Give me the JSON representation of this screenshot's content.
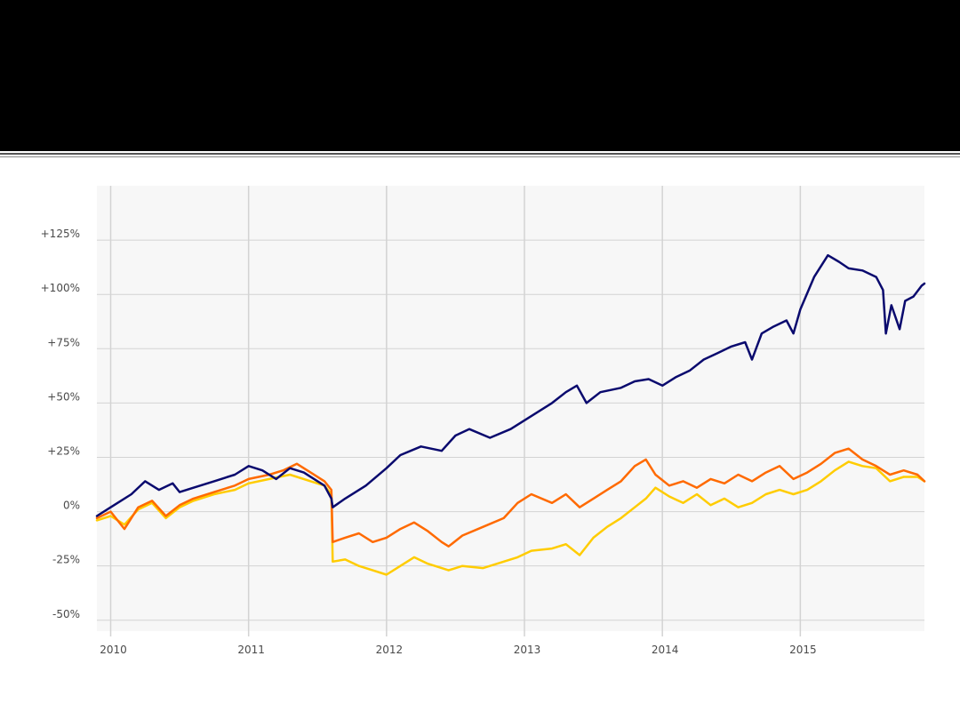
{
  "chart_data": {
    "type": "line",
    "title": "",
    "xlabel": "",
    "ylabel": "",
    "xlim": [
      2009.9,
      2015.9
    ],
    "ylim": [
      -55,
      150
    ],
    "grid": true,
    "legend": "none",
    "x_ticks": [
      {
        "value": 2010,
        "label": "2010"
      },
      {
        "value": 2011,
        "label": "2011"
      },
      {
        "value": 2012,
        "label": "2012"
      },
      {
        "value": 2013,
        "label": "2013"
      },
      {
        "value": 2014,
        "label": "2014"
      },
      {
        "value": 2015,
        "label": "2015"
      }
    ],
    "y_ticks": [
      {
        "value": 125,
        "label": "+125%"
      },
      {
        "value": 100,
        "label": "+100%"
      },
      {
        "value": 75,
        "label": "+75%"
      },
      {
        "value": 50,
        "label": "+50%"
      },
      {
        "value": 25,
        "label": "+25%"
      },
      {
        "value": 0,
        "label": "0%"
      },
      {
        "value": -25,
        "label": "-25%"
      },
      {
        "value": -50,
        "label": "-50%"
      }
    ],
    "colors": {
      "plot_background": "#f7f7f7",
      "grid": "#d3d3d3"
    },
    "series": [
      {
        "color": "#0a0a6e",
        "x": [
          2009.9,
          2010.0,
          2010.15,
          2010.25,
          2010.35,
          2010.45,
          2010.5,
          2010.6,
          2010.75,
          2010.9,
          2011.0,
          2011.1,
          2011.2,
          2011.3,
          2011.4,
          2011.5,
          2011.55,
          2011.6,
          2011.61,
          2011.7,
          2011.85,
          2012.0,
          2012.1,
          2012.25,
          2012.4,
          2012.5,
          2012.6,
          2012.75,
          2012.9,
          2013.0,
          2013.1,
          2013.2,
          2013.3,
          2013.38,
          2013.45,
          2013.55,
          2013.7,
          2013.8,
          2013.9,
          2014.0,
          2014.1,
          2014.2,
          2014.3,
          2014.4,
          2014.5,
          2014.6,
          2014.65,
          2014.72,
          2014.8,
          2014.9,
          2014.95,
          2015.0,
          2015.1,
          2015.2,
          2015.28,
          2015.35,
          2015.45,
          2015.55,
          2015.6,
          2015.62,
          2015.66,
          2015.72,
          2015.76,
          2015.82,
          2015.88,
          2015.9
        ],
        "values": [
          -2,
          2,
          8,
          14,
          10,
          13,
          9,
          11,
          14,
          17,
          21,
          19,
          15,
          20,
          18,
          14,
          12,
          6,
          2,
          6,
          12,
          20,
          26,
          30,
          28,
          35,
          38,
          34,
          38,
          42,
          46,
          50,
          55,
          58,
          50,
          55,
          57,
          60,
          61,
          58,
          62,
          65,
          70,
          73,
          76,
          78,
          70,
          82,
          85,
          88,
          82,
          93,
          108,
          118,
          115,
          112,
          111,
          108,
          102,
          82,
          95,
          84,
          97,
          99,
          104,
          105
        ]
      },
      {
        "color": "#ff6a00",
        "x": [
          2009.9,
          2010.0,
          2010.1,
          2010.2,
          2010.3,
          2010.4,
          2010.5,
          2010.6,
          2010.75,
          2010.9,
          2011.0,
          2011.15,
          2011.25,
          2011.35,
          2011.45,
          2011.55,
          2011.6,
          2011.61,
          2011.7,
          2011.8,
          2011.9,
          2012.0,
          2012.1,
          2012.2,
          2012.3,
          2012.4,
          2012.45,
          2012.55,
          2012.7,
          2012.85,
          2012.95,
          2013.05,
          2013.2,
          2013.3,
          2013.4,
          2013.5,
          2013.6,
          2013.7,
          2013.8,
          2013.88,
          2013.95,
          2014.05,
          2014.15,
          2014.25,
          2014.35,
          2014.45,
          2014.55,
          2014.65,
          2014.75,
          2014.85,
          2014.95,
          2015.05,
          2015.15,
          2015.25,
          2015.35,
          2015.45,
          2015.55,
          2015.6,
          2015.65,
          2015.75,
          2015.85,
          2015.9
        ],
        "values": [
          -3,
          0,
          -8,
          2,
          5,
          -2,
          3,
          6,
          9,
          12,
          15,
          17,
          19,
          22,
          18,
          14,
          10,
          -14,
          -12,
          -10,
          -14,
          -12,
          -8,
          -5,
          -9,
          -14,
          -16,
          -11,
          -7,
          -3,
          4,
          8,
          4,
          8,
          2,
          6,
          10,
          14,
          21,
          24,
          17,
          12,
          14,
          11,
          15,
          13,
          17,
          14,
          18,
          21,
          15,
          18,
          22,
          27,
          29,
          24,
          21,
          19,
          17,
          19,
          17,
          14
        ]
      },
      {
        "color": "#ffcc00",
        "x": [
          2009.9,
          2010.0,
          2010.1,
          2010.2,
          2010.3,
          2010.4,
          2010.5,
          2010.6,
          2010.75,
          2010.9,
          2011.0,
          2011.15,
          2011.3,
          2011.45,
          2011.55,
          2011.6,
          2011.61,
          2011.7,
          2011.8,
          2011.9,
          2012.0,
          2012.1,
          2012.2,
          2012.3,
          2012.4,
          2012.45,
          2012.55,
          2012.7,
          2012.85,
          2012.95,
          2013.05,
          2013.2,
          2013.3,
          2013.4,
          2013.5,
          2013.6,
          2013.7,
          2013.8,
          2013.88,
          2013.95,
          2014.05,
          2014.15,
          2014.25,
          2014.35,
          2014.45,
          2014.55,
          2014.65,
          2014.75,
          2014.85,
          2014.95,
          2015.05,
          2015.15,
          2015.25,
          2015.35,
          2015.45,
          2015.55,
          2015.6,
          2015.65,
          2015.75,
          2015.85,
          2015.9
        ],
        "values": [
          -4,
          -2,
          -6,
          1,
          4,
          -3,
          2,
          5,
          8,
          10,
          13,
          15,
          17,
          14,
          12,
          8,
          -23,
          -22,
          -25,
          -27,
          -29,
          -25,
          -21,
          -24,
          -26,
          -27,
          -25,
          -26,
          -23,
          -21,
          -18,
          -17,
          -15,
          -20,
          -12,
          -7,
          -3,
          2,
          6,
          11,
          7,
          4,
          8,
          3,
          6,
          2,
          4,
          8,
          10,
          8,
          10,
          14,
          19,
          23,
          21,
          20,
          17,
          14,
          16,
          16,
          14
        ]
      }
    ]
  }
}
